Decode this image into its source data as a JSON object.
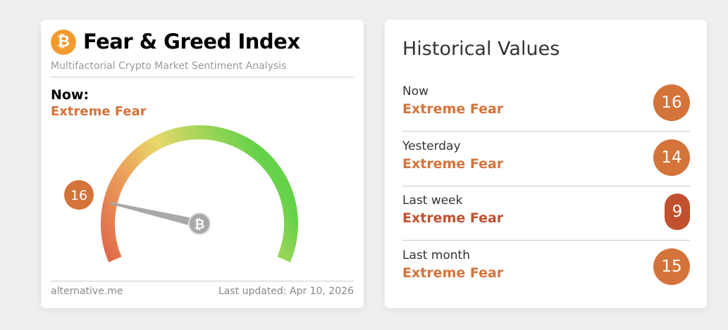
{
  "left_card": {
    "logo": "₿",
    "title": "Fear & Greed Index",
    "subtitle": "Multifactorial Crypto Market Sentiment Analysis",
    "now_label": "Now:",
    "now_value": "Extreme Fear",
    "gauge_value": 16,
    "gauge_value_label": "16",
    "gauge_range": [
      0,
      100
    ],
    "footer_source": "alternative.me",
    "footer_updated": "Last updated: Apr 10, 2026"
  },
  "right_card": {
    "title": "Historical Values",
    "rows": [
      {
        "label": "Now",
        "value": "Extreme Fear",
        "score": "16",
        "color": "#d4733a"
      },
      {
        "label": "Yesterday",
        "value": "Extreme Fear",
        "score": "14",
        "color": "#d4733a"
      },
      {
        "label": "Last week",
        "value": "Extreme Fear",
        "score": "9",
        "color": "#c0502e"
      },
      {
        "label": "Last month",
        "value": "Extreme Fear",
        "score": "15",
        "color": "#d4733a"
      }
    ]
  },
  "colors": {
    "fear": "#d4733a",
    "extreme": "#c0502e",
    "greed": "#6fd14f"
  }
}
